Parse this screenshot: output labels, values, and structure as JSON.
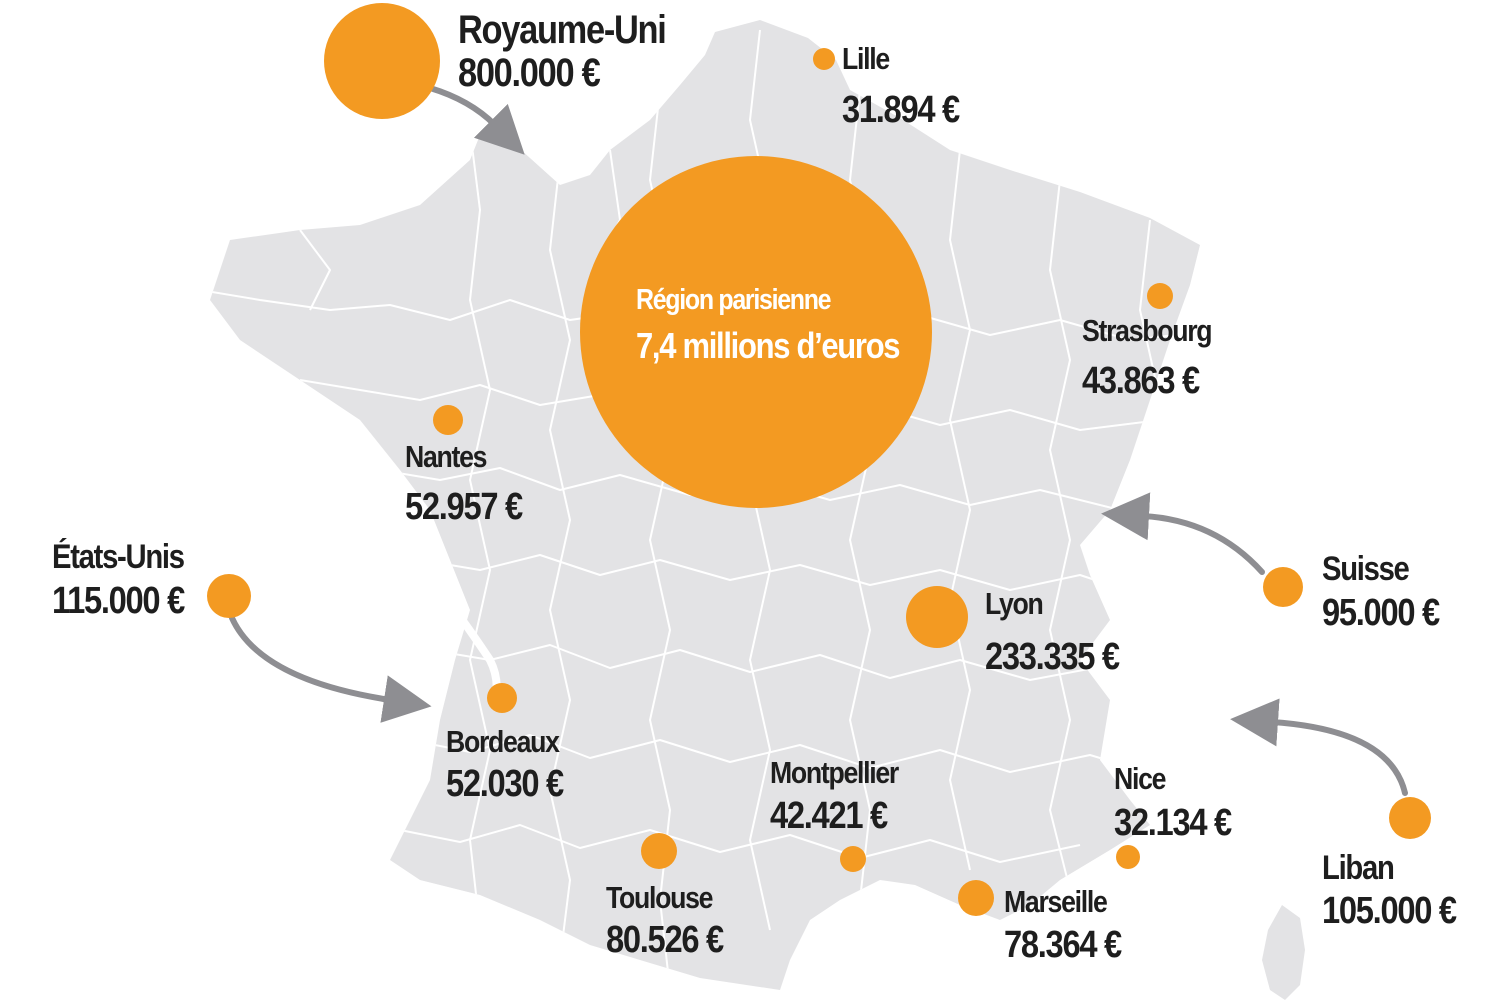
{
  "colors": {
    "map_fill": "#e3e3e5",
    "map_borders": "#ffffff",
    "bubble": "#f39a22",
    "arrow": "#8e8e92",
    "text": "#1e1e1e",
    "paris_text": "#ffffff"
  },
  "paris": {
    "line1": "Région parisienne",
    "line2": "7,4 millions d’euros"
  },
  "cities": [
    {
      "id": "lille",
      "name": "Lille",
      "value": "31.894 €"
    },
    {
      "id": "strasbourg",
      "name": "Strasbourg",
      "value": "43.863 €"
    },
    {
      "id": "nantes",
      "name": "Nantes",
      "value": "52.957 €"
    },
    {
      "id": "lyon",
      "name": "Lyon",
      "value": "233.335 €"
    },
    {
      "id": "bordeaux",
      "name": "Bordeaux",
      "value": "52.030 €"
    },
    {
      "id": "montpellier",
      "name": "Montpellier",
      "value": "42.421 €"
    },
    {
      "id": "nice",
      "name": "Nice",
      "value": "32.134 €"
    },
    {
      "id": "toulouse",
      "name": "Toulouse",
      "value": "80.526 €"
    },
    {
      "id": "marseille",
      "name": "Marseille",
      "value": "78.364 €"
    }
  ],
  "foreign": [
    {
      "id": "royaume-uni",
      "name": "Royaume-Uni",
      "value": "800.000 €"
    },
    {
      "id": "etats-unis",
      "name": "États-Unis",
      "value": "115.000 €"
    },
    {
      "id": "suisse",
      "name": "Suisse",
      "value": "95.000 €"
    },
    {
      "id": "liban",
      "name": "Liban",
      "value": "105.000 €"
    }
  ]
}
